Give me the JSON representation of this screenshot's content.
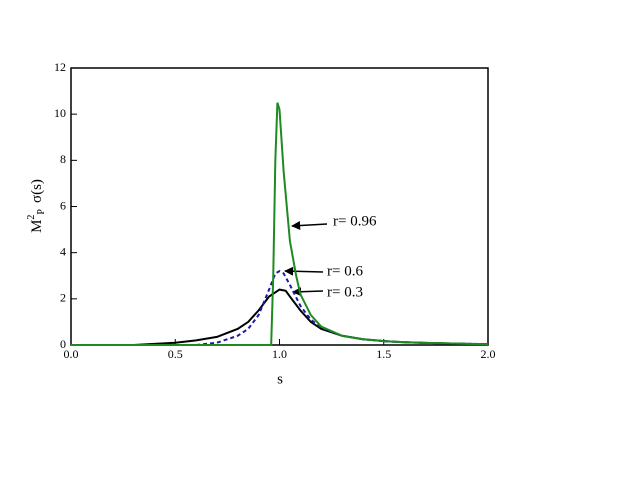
{
  "chart_data": {
    "type": "line",
    "x_label": "s",
    "y_label": {
      "base": "M",
      "sup": "2",
      "sub": "P",
      "rest": "σ(s)"
    },
    "xlim": [
      0,
      2.0
    ],
    "ylim": [
      0,
      12
    ],
    "xticks": [
      {
        "value": 0,
        "label": "0.0"
      },
      {
        "value": 0.5,
        "label": "0.5"
      },
      {
        "value": 1,
        "label": "1.0"
      },
      {
        "value": 1.5,
        "label": "1.5"
      },
      {
        "value": 2,
        "label": "2.0"
      }
    ],
    "yticks": [
      0,
      2,
      4,
      6,
      8,
      10,
      12
    ],
    "series": [
      {
        "name": "r= 0.3",
        "color": "#000000",
        "dash": false,
        "x": [
          0.3,
          0.4,
          0.5,
          0.6,
          0.7,
          0.8,
          0.85,
          0.9,
          0.95,
          1.0,
          1.03,
          1.05,
          1.1,
          1.15,
          1.2,
          1.3,
          1.4,
          1.5,
          1.6,
          1.7,
          1.8,
          1.9,
          2.0
        ],
        "values": [
          0,
          0.05,
          0.1,
          0.2,
          0.35,
          0.7,
          1.0,
          1.5,
          2.1,
          2.4,
          2.35,
          2.1,
          1.5,
          1.0,
          0.7,
          0.4,
          0.25,
          0.17,
          0.12,
          0.09,
          0.07,
          0.05,
          0.04
        ]
      },
      {
        "name": "r= 0.6",
        "color": "#1a1aa8",
        "dash": true,
        "x": [
          0.6,
          0.7,
          0.8,
          0.85,
          0.9,
          0.95,
          0.98,
          1.0,
          1.02,
          1.05,
          1.1,
          1.15,
          1.2,
          1.3,
          1.4,
          1.5,
          1.6,
          1.7,
          1.8,
          1.9,
          2.0
        ],
        "values": [
          0,
          0.1,
          0.4,
          0.7,
          1.3,
          2.4,
          3.1,
          3.2,
          3.1,
          2.6,
          1.7,
          1.1,
          0.75,
          0.4,
          0.25,
          0.17,
          0.12,
          0.09,
          0.07,
          0.05,
          0.04
        ]
      },
      {
        "name": "r= 0.96",
        "color": "#1f8a1f",
        "dash": false,
        "x": [
          0,
          0.96,
          0.97,
          0.98,
          0.99,
          1.0,
          1.02,
          1.05,
          1.08,
          1.1,
          1.15,
          1.2,
          1.3,
          1.4,
          1.5,
          1.6,
          1.7,
          1.8,
          1.9,
          2.0
        ],
        "values": [
          0,
          0,
          3,
          8,
          10.5,
          10.2,
          7.5,
          4.5,
          3,
          2.2,
          1.3,
          0.8,
          0.4,
          0.25,
          0.17,
          0.12,
          0.09,
          0.07,
          0.05,
          0.04
        ]
      }
    ]
  }
}
